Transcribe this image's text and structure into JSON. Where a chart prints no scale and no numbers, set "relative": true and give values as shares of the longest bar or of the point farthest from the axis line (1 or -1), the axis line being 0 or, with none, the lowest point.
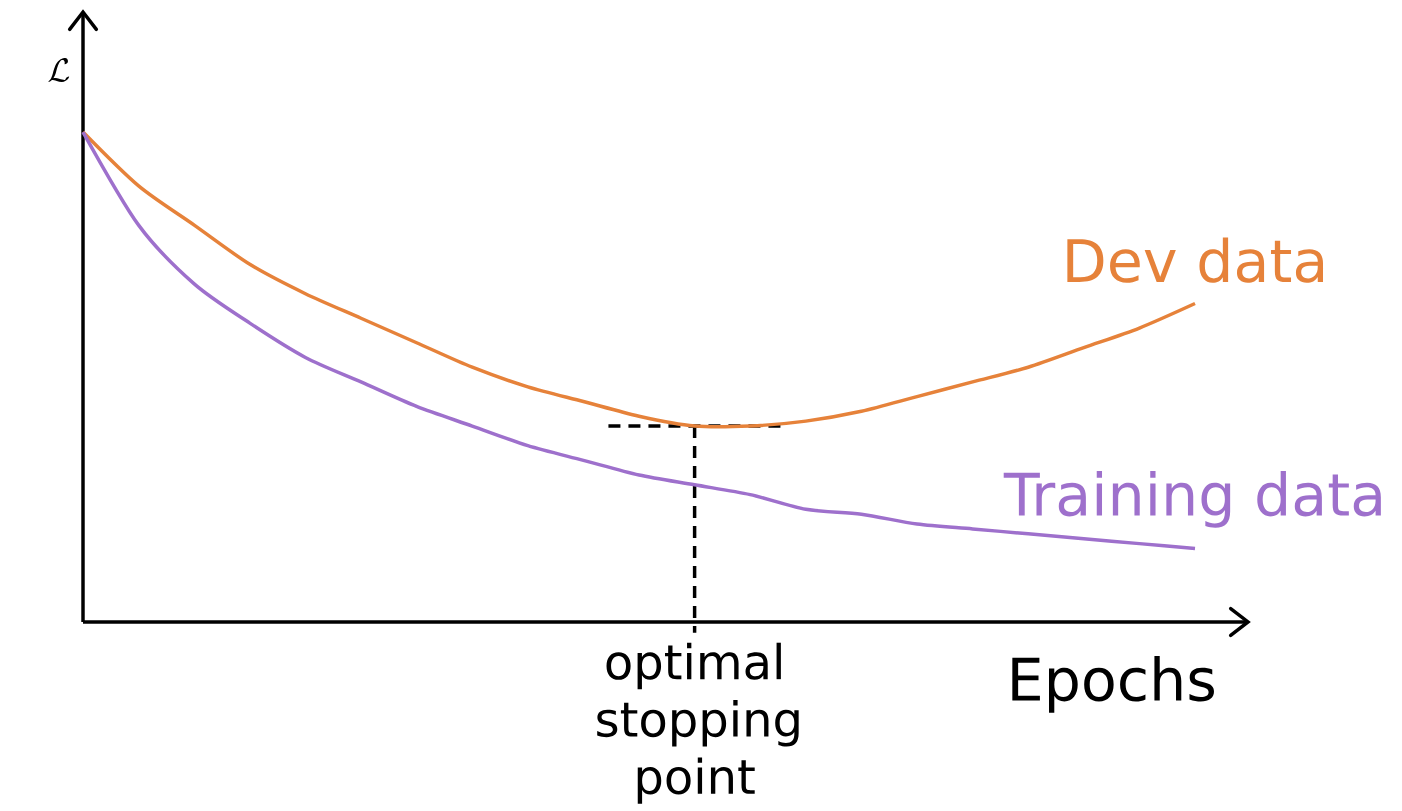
{
  "chart_data": {
    "type": "line",
    "relative": true,
    "xlabel": "Epochs",
    "ylabel": "\\mathcal{L}",
    "categories": [
      null,
      null,
      null,
      null,
      null,
      null,
      null,
      null,
      null,
      null,
      null,
      null,
      null,
      null,
      null,
      null,
      null,
      null,
      null,
      null,
      null
    ],
    "series": [
      {
        "name": "Dev data",
        "color": "#e6823a",
        "values": [
          1.0,
          0.89,
          0.81,
          0.73,
          0.67,
          0.62,
          0.57,
          0.52,
          0.48,
          0.45,
          0.42,
          0.4,
          0.4,
          0.41,
          0.43,
          0.46,
          0.49,
          0.52,
          0.56,
          0.6,
          0.65
        ]
      },
      {
        "name": "Training data",
        "color": "#9e70cc",
        "values": [
          1.0,
          0.81,
          0.69,
          0.61,
          0.54,
          0.49,
          0.44,
          0.4,
          0.36,
          0.33,
          0.3,
          0.28,
          0.26,
          0.23,
          0.22,
          0.2,
          0.19,
          0.18,
          0.17,
          0.16,
          0.15
        ]
      }
    ],
    "ref_lines": [
      {
        "axis": "y",
        "value": 0.4,
        "line_style": "dashed",
        "color": "#000000"
      }
    ],
    "annotations": [
      "optimal stopping point"
    ]
  }
}
